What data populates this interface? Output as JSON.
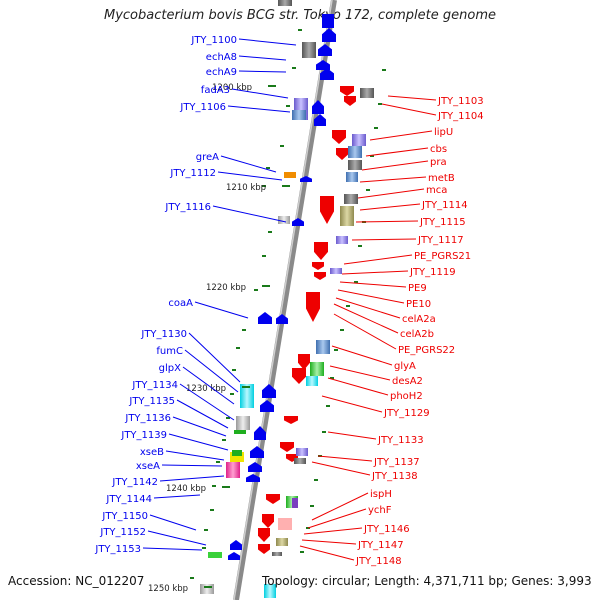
{
  "title": "Mycobacterium bovis BCG str. Tokyo 172, complete genome",
  "accession_text": "Accession: NC_012207",
  "summary_text": "Topology: circular; Length: 4,371,711 bp; Genes: 3,993",
  "colors": {
    "backbone": "#8c8c8c",
    "forward_gene": "#0000ee",
    "reverse_gene": "#ee0000",
    "tick": "#1a7a1a"
  },
  "scale_labels": [
    "1200 kbp",
    "1210 kbp",
    "1220 kbp",
    "1230 kbp",
    "1240 kbp",
    "1250 kbp"
  ],
  "left_genes": [
    "JTY_1100",
    "echA8",
    "echA9",
    "fadA3",
    "JTY_1106",
    "greA",
    "JTY_1112",
    "JTY_1116",
    "coaA",
    "JTY_1130",
    "fumC",
    "glpX",
    "JTY_1134",
    "JTY_1135",
    "JTY_1136",
    "JTY_1139",
    "xseB",
    "xseA",
    "JTY_1142",
    "JTY_1144",
    "JTY_1150",
    "JTY_1152",
    "JTY_1153"
  ],
  "right_genes": [
    "JTY_1103",
    "JTY_1104",
    "lipU",
    "cbs",
    "pra",
    "metB",
    "mca",
    "JTY_1114",
    "JTY_1115",
    "JTY_1117",
    "PE_PGRS21",
    "JTY_1119",
    "PE9",
    "PE10",
    "celA2a",
    "celA2b",
    "PE_PGRS22",
    "glyA",
    "desA2",
    "phoH2",
    "JTY_1129",
    "JTY_1133",
    "JTY_1137",
    "JTY_1138",
    "ispH",
    "ychF",
    "JTY_1146",
    "JTY_1147",
    "JTY_1148"
  ]
}
